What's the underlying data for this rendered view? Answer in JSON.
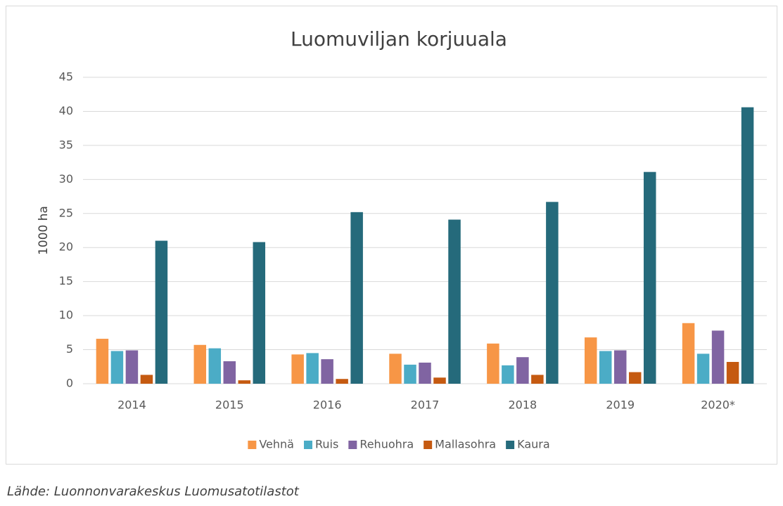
{
  "chart_data": {
    "type": "bar",
    "title": "Luomuviljan korjuuala",
    "ylabel": "1000 ha",
    "source": "Lähde: Luonnonvarakeskus Luomusatotilastot",
    "categories": [
      "2014",
      "2015",
      "2016",
      "2017",
      "2018",
      "2019",
      "2020*"
    ],
    "series": [
      {
        "name": "Vehnä",
        "color": "#f79646",
        "values": [
          6.6,
          5.7,
          4.3,
          4.4,
          5.9,
          6.8,
          8.9
        ]
      },
      {
        "name": "Ruis",
        "color": "#4bacc6",
        "values": [
          4.8,
          5.2,
          4.5,
          2.8,
          2.7,
          4.8,
          4.4
        ]
      },
      {
        "name": "Rehuohra",
        "color": "#8064a2",
        "values": [
          4.9,
          3.3,
          3.6,
          3.1,
          3.9,
          4.9,
          7.8
        ]
      },
      {
        "name": "Mallasohra",
        "color": "#c55a11",
        "values": [
          1.3,
          0.5,
          0.7,
          0.9,
          1.3,
          1.7,
          3.2
        ]
      },
      {
        "name": "Kaura",
        "color": "#256a7b",
        "values": [
          21.0,
          20.8,
          25.2,
          24.1,
          26.7,
          31.1,
          40.6
        ]
      }
    ],
    "ylim": [
      0,
      45
    ],
    "yticks": [
      0,
      5,
      10,
      15,
      20,
      25,
      30,
      35,
      40,
      45
    ],
    "grid": true,
    "legend": "bottom"
  }
}
